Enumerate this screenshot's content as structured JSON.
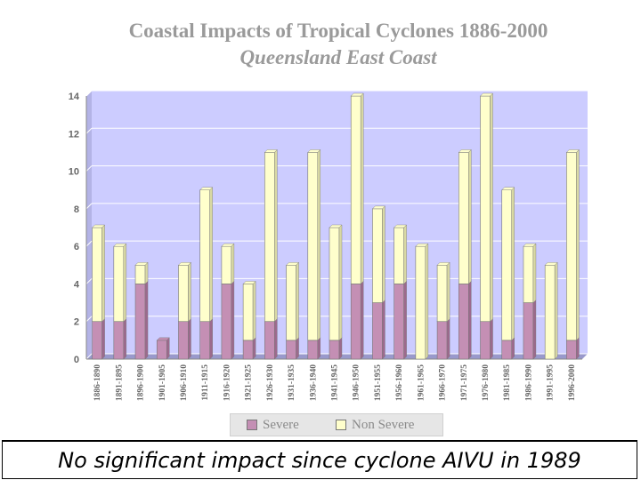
{
  "chart_data": {
    "type": "bar",
    "stacked": true,
    "title": "Coastal Impacts of Tropical Cyclones 1886-2000",
    "subtitle": "Queensland East Coast",
    "categories": [
      "1886-1890",
      "1891-1895",
      "1896-1900",
      "1901-1905",
      "1906-1910",
      "1911-1915",
      "1916-1920",
      "1921-1925",
      "1926-1930",
      "1931-1935",
      "1936-1940",
      "1941-1945",
      "1946-1950",
      "1951-1955",
      "1956-1960",
      "1961-1965",
      "1966-1970",
      "1971-1975",
      "1976-1980",
      "1981-1985",
      "1986-1990",
      "1991-1995",
      "1996-2000"
    ],
    "series": [
      {
        "name": "Severe",
        "color": "#c48fb4",
        "values": [
          2,
          2,
          4,
          1,
          2,
          2,
          4,
          1,
          2,
          1,
          1,
          1,
          4,
          3,
          4,
          0,
          2,
          4,
          2,
          1,
          3,
          0,
          1
        ]
      },
      {
        "name": "Non Severe",
        "color": "#ffffcc",
        "values": [
          5,
          4,
          1,
          0,
          3,
          7,
          2,
          3,
          9,
          4,
          10,
          6,
          10,
          5,
          3,
          6,
          3,
          7,
          12,
          8,
          3,
          5,
          10
        ]
      }
    ],
    "ylim": [
      0,
      14
    ],
    "yticks": [
      "0",
      "2",
      "4",
      "6",
      "8",
      "10",
      "12",
      "14"
    ],
    "grid": true,
    "plot_background": "#ccccff",
    "legend_position": "bottom"
  },
  "legend": {
    "severe_label": "Severe",
    "non_severe_label": "Non Severe"
  },
  "caption": "No significant impact since cyclone AIVU in 1989"
}
